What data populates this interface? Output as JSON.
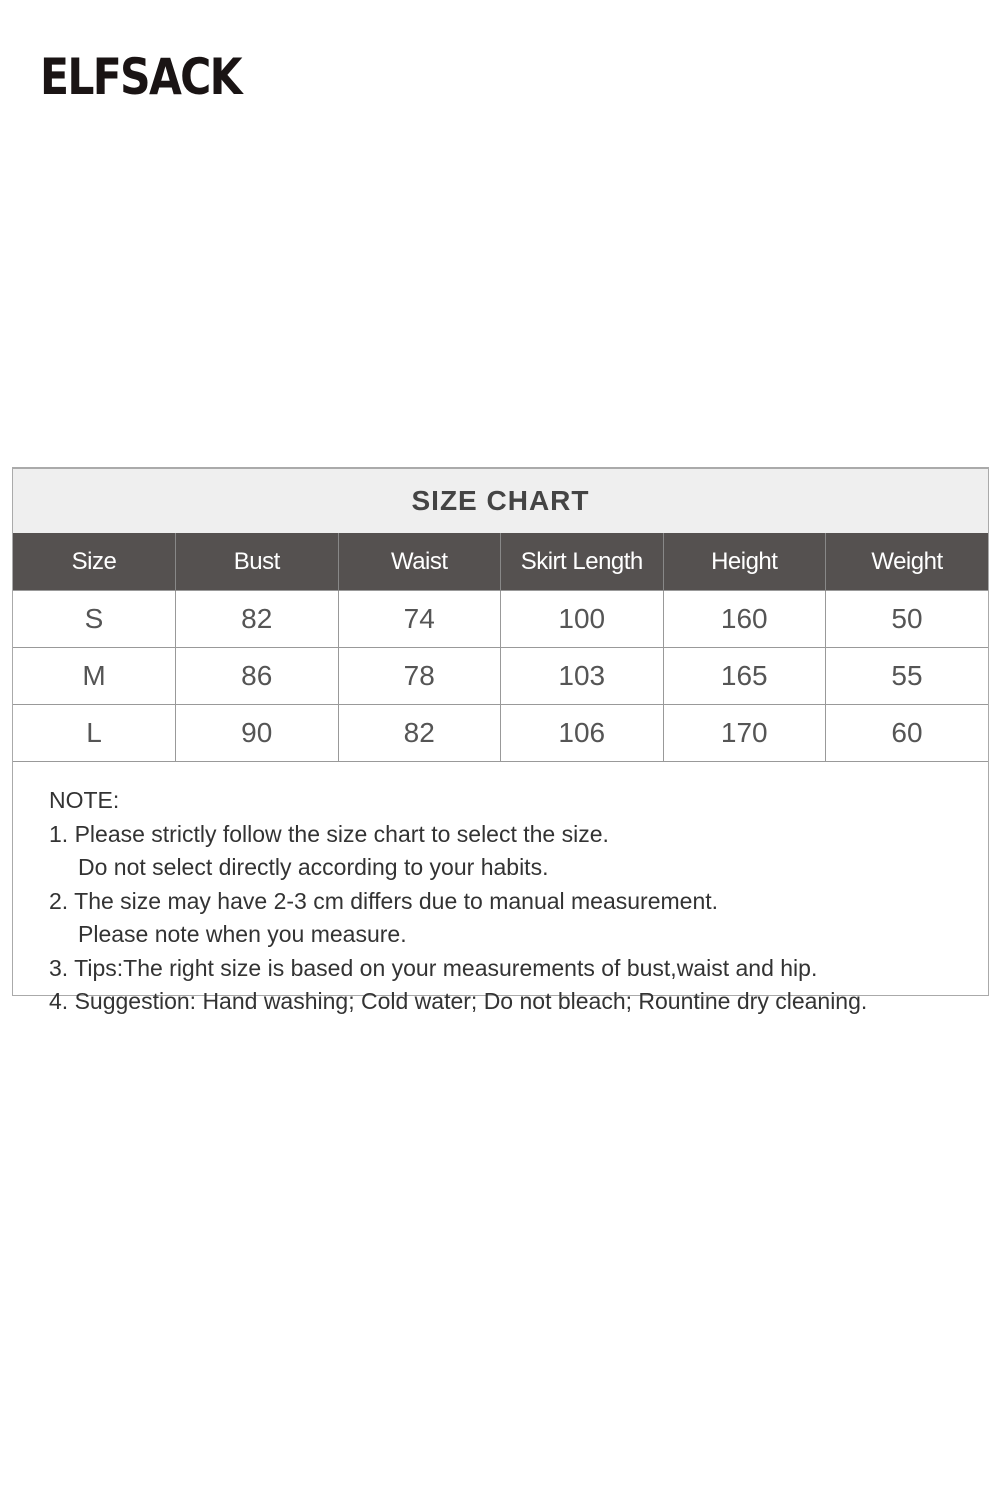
{
  "brand": {
    "logo_text": "ELFSACK"
  },
  "chart": {
    "title": "SIZE CHART"
  },
  "table": {
    "headers": [
      "Size",
      "Bust",
      "Waist",
      "Skirt Length",
      "Height",
      "Weight"
    ],
    "rows": [
      [
        "S",
        "82",
        "74",
        "100",
        "160",
        "50"
      ],
      [
        "M",
        "86",
        "78",
        "103",
        "165",
        "55"
      ],
      [
        "L",
        "90",
        "82",
        "106",
        "170",
        "60"
      ]
    ]
  },
  "notes": {
    "heading": "NOTE:",
    "lines": [
      "1. Please strictly follow the size chart to select the size.",
      "Do not select directly according to your habits.",
      "2. The size may have 2-3 cm differs due to manual measurement.",
      "Please note when you measure.",
      "3. Tips:The right size is based on your measurements of bust,waist and hip.",
      "4. Suggestion: Hand washing; Cold water; Do not bleach; Rountine dry cleaning."
    ]
  }
}
